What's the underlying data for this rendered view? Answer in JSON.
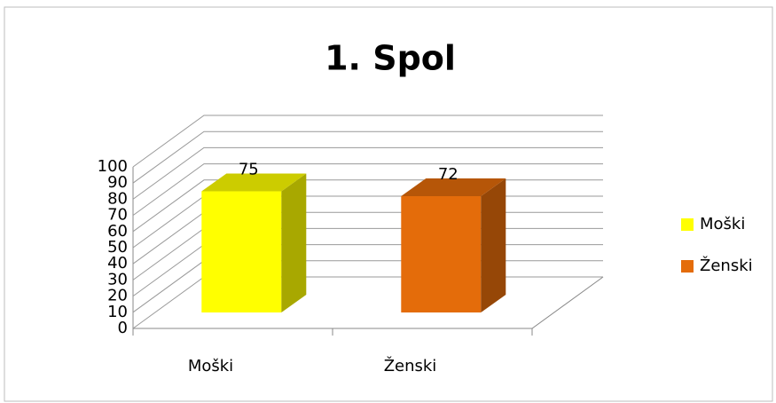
{
  "chart_data": {
    "type": "bar3d",
    "title": "1. Spol",
    "categories": [
      "Moški",
      "Ženski"
    ],
    "values": [
      75,
      72
    ],
    "colors": [
      "#ffff00",
      "#e46c0a"
    ],
    "ylim": [
      0,
      100
    ],
    "yticks": [
      0,
      10,
      20,
      30,
      40,
      50,
      60,
      70,
      80,
      90,
      100
    ],
    "grid": true,
    "legend": "right"
  }
}
